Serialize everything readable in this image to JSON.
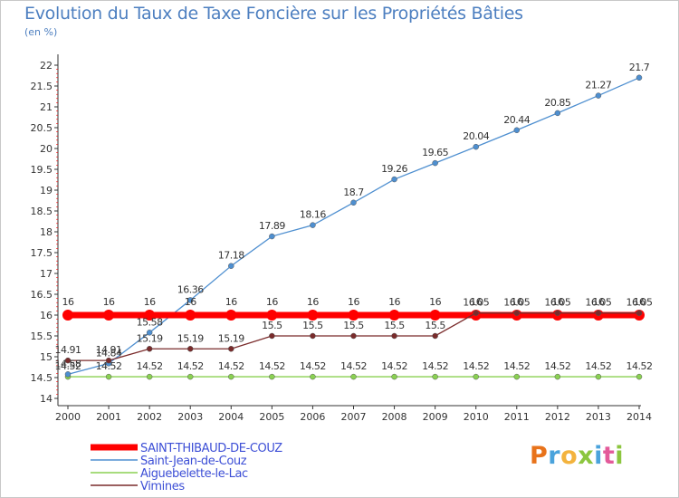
{
  "title": "Evolution du Taux de Taxe Foncière sur les Propriétés Bâties",
  "subtitle": "(en %)",
  "logo_text": "Proxiti",
  "chart_data": {
    "type": "line",
    "x": [
      2000,
      2001,
      2002,
      2003,
      2004,
      2005,
      2006,
      2007,
      2008,
      2009,
      2010,
      2011,
      2012,
      2013,
      2014
    ],
    "ylim": [
      14,
      22
    ],
    "yticks": [
      14,
      14.5,
      15,
      15.5,
      16,
      16.5,
      17,
      17.5,
      18,
      18.5,
      19,
      19.5,
      20,
      20.5,
      21,
      21.5,
      22
    ],
    "grid": false,
    "legend_position": "bottom-left",
    "series": [
      {
        "name": "SAINT-THIBAUD-DE-COUZ",
        "color": "#ff0000",
        "values": [
          16,
          16,
          16,
          16,
          16,
          16,
          16,
          16,
          16,
          16,
          16,
          16,
          16,
          16,
          16
        ],
        "labels": [
          "16",
          "16",
          "16",
          "16",
          "16",
          "16",
          "16",
          "16",
          "16",
          "16",
          "16",
          "16",
          "16",
          "16",
          "16"
        ]
      },
      {
        "name": "Saint-Jean-de-Couz",
        "color": "#4e8fd0",
        "values": [
          14.58,
          14.84,
          15.58,
          16.36,
          17.18,
          17.89,
          18.16,
          18.7,
          19.26,
          19.65,
          20.04,
          20.44,
          20.85,
          21.27,
          21.7
        ],
        "labels": [
          "14.58",
          "14.84",
          "15.58",
          "16.36",
          "17.18",
          "17.89",
          "18.16",
          "18.7",
          "19.26",
          "19.65",
          "20.04",
          "20.44",
          "20.85",
          "21.27",
          "21.7"
        ]
      },
      {
        "name": "Aiguebelette-le-Lac",
        "color": "#8ad152",
        "values": [
          14.52,
          14.52,
          14.52,
          14.52,
          14.52,
          14.52,
          14.52,
          14.52,
          14.52,
          14.52,
          14.52,
          14.52,
          14.52,
          14.52,
          14.52
        ],
        "labels": [
          "14.52",
          "14.52",
          "14.52",
          "14.52",
          "14.52",
          "14.52",
          "14.52",
          "14.52",
          "14.52",
          "14.52",
          "14.52",
          "14.52",
          "14.52",
          "14.52",
          "14.52"
        ]
      },
      {
        "name": "Vimines",
        "color": "#7a2b2b",
        "values": [
          14.91,
          14.91,
          15.19,
          15.19,
          15.19,
          15.5,
          15.5,
          15.5,
          15.5,
          15.5,
          16.05,
          16.05,
          16.05,
          16.05,
          16.05
        ],
        "labels": [
          "14.91",
          "14.91",
          "15.19",
          "15.19",
          "15.19",
          "15.5",
          "15.5",
          "15.5",
          "15.5",
          "15.5",
          "16.05",
          "16.05",
          "16.05",
          "16.05",
          "16.05"
        ]
      }
    ]
  }
}
